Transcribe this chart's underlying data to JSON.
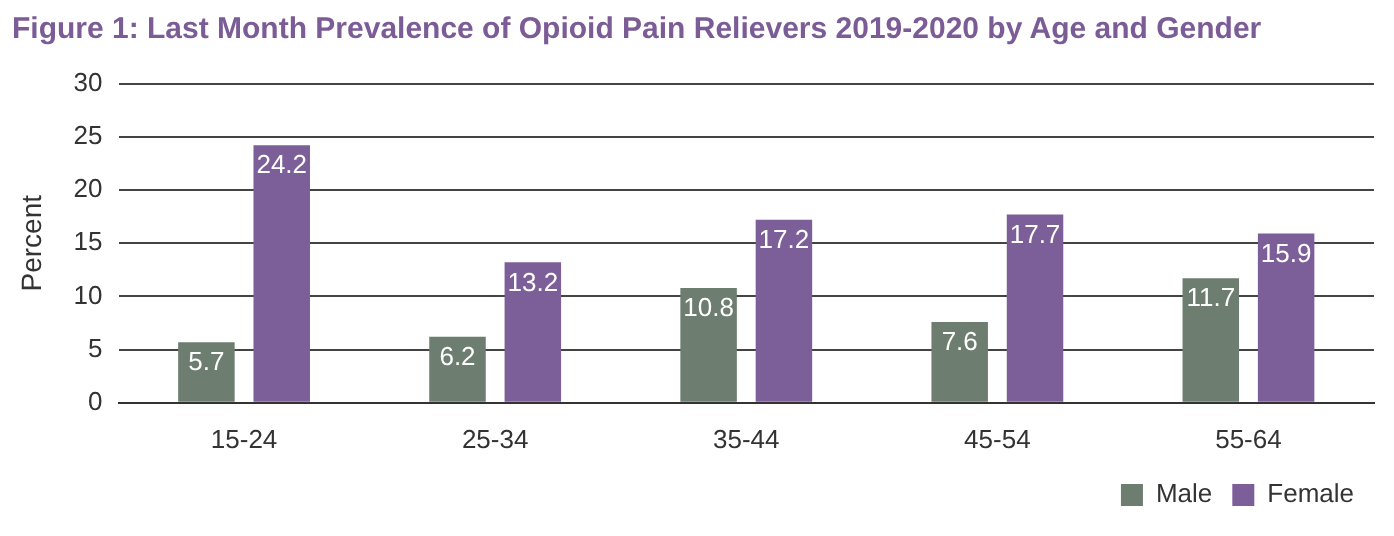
{
  "chart_data": {
    "type": "bar",
    "title": "Figure 1: Last Month Prevalence of Opioid Pain Relievers 2019-2020 by Age and Gender",
    "ylabel": "Percent",
    "categories": [
      "15-24",
      "25-34",
      "35-44",
      "45-54",
      "55-64"
    ],
    "series": [
      {
        "name": "Male",
        "color": "#6d7d6f",
        "values": [
          5.7,
          6.2,
          10.8,
          7.6,
          11.7
        ]
      },
      {
        "name": "Female",
        "color": "#7c5f99",
        "values": [
          24.2,
          13.2,
          17.2,
          17.7,
          15.9
        ]
      }
    ],
    "ylim": [
      0,
      30
    ],
    "yticks": [
      0,
      5,
      10,
      15,
      20,
      25,
      30
    ],
    "grid": "y",
    "legend": "bottom right",
    "data_labels": true
  }
}
